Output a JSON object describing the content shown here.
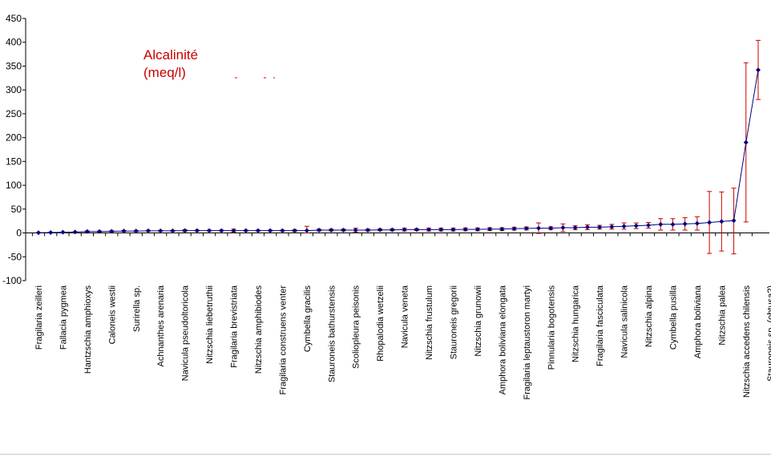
{
  "chart_data": {
    "type": "line",
    "title": "Alcalinité\n(meq/l)",
    "title_color": "#cc0000",
    "line_color": "#00007f",
    "marker_color": "#00007f",
    "errorbar_color": "#cc0000",
    "xlabel": "",
    "ylabel": "",
    "ylim": [
      -100,
      450
    ],
    "yticks": [
      -100,
      -50,
      0,
      50,
      100,
      150,
      200,
      250,
      300,
      350,
      400,
      450
    ],
    "grid": false,
    "legend": "none",
    "x_labels_shown": [
      "Fragilaria zeilleri",
      "Fallacia pygmea",
      "Hantzschia amphioxys",
      "Caloneis westii",
      "Surirella sp.",
      "Achnanthes arenaria",
      "Navicula pseudoltoricola",
      "Nitzschia liebetruthii",
      "Fragilaria brevistriata",
      "Nitzschia amphibiodes",
      "Fragilaria construens venter",
      "Cymbella gracilis",
      "Stauroneis bathurstensis",
      "Scoliopleura peisonis",
      "Rhopalodia wetzelii",
      "Navicula veneta",
      "Nitzschia frustulum",
      "Stauroneis gregorii",
      "Nitzschia grunowii",
      "Amphora boliviana elongata",
      "Fragilaria leptaustoron martyi",
      "Pinnularia bogotensis",
      "Nitzschia hungarica",
      "Fragilaria fasciculata",
      "Navicula salinicola",
      "Nitzschia alpina",
      "Cymbella pusilla",
      "Amphora boliviana",
      "Nitzschia palea",
      "Nitzschia accedens chilensis",
      "Stauroneis sp. (obtusa?)"
    ],
    "series": [
      {
        "values": [
          0.5,
          1,
          1.5,
          2,
          3,
          3,
          3.5,
          4,
          4,
          4.5,
          4.5,
          4.5,
          5,
          5,
          5,
          5,
          5,
          5,
          5,
          5,
          5,
          5,
          5,
          6,
          6,
          6,
          6,
          6,
          6.5,
          6.5,
          7,
          7,
          7,
          7,
          7,
          7.5,
          7.5,
          8,
          8,
          9,
          9.5,
          10,
          10,
          11,
          11,
          12,
          12,
          13,
          14,
          15,
          16,
          18,
          18,
          19,
          20,
          22,
          24,
          26,
          190,
          342
        ],
        "err_low": [
          0.5,
          0.5,
          0.5,
          0.5,
          1,
          1,
          1,
          1,
          1,
          1,
          1,
          1,
          2,
          1,
          1,
          1,
          3,
          1,
          1,
          1,
          1,
          2,
          5,
          2,
          2,
          2,
          4,
          2,
          2,
          2,
          3,
          2,
          3,
          3,
          3,
          3,
          3,
          3,
          3,
          3,
          3,
          11,
          3,
          8,
          4,
          5,
          4,
          5,
          6,
          6,
          6,
          12,
          12,
          13,
          14,
          65,
          62,
          70,
          167,
          62
        ],
        "err_high": [
          0.5,
          0.5,
          0.5,
          0.5,
          1,
          1,
          1,
          1,
          1,
          1,
          1,
          1,
          2,
          1,
          1,
          1,
          3,
          1,
          1,
          1,
          1,
          2,
          9,
          2,
          2,
          2,
          4,
          2,
          2,
          2,
          3,
          2,
          3,
          3,
          3,
          3,
          3,
          3,
          3,
          3,
          3,
          11,
          3,
          8,
          4,
          5,
          4,
          5,
          7,
          6,
          6,
          12,
          12,
          13,
          14,
          65,
          62,
          68,
          167,
          62
        ]
      }
    ]
  }
}
